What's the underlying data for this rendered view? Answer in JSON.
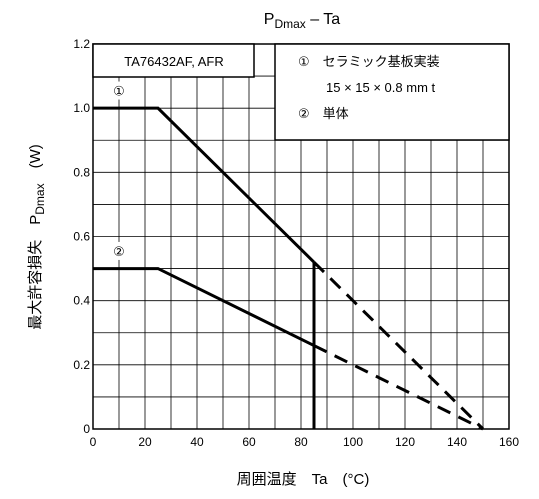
{
  "chart_data": {
    "type": "line",
    "title": "P",
    "title_subscript": "Dmax",
    "title_suffix": " – Ta",
    "xlabel": "周囲温度　Ta　(°C)",
    "ylabel_prefix": "最大許容損失　P",
    "ylabel_subscript": "Dmax",
    "ylabel_suffix": "　(W)",
    "xlim": [
      0,
      160
    ],
    "ylim": [
      0,
      1.2
    ],
    "x_ticks": [
      "0",
      "20",
      "40",
      "60",
      "80",
      "100",
      "120",
      "140",
      "160"
    ],
    "y_ticks": [
      "0",
      "0.2",
      "0.4",
      "0.6",
      "0.8",
      "1.0",
      "1.2"
    ],
    "grid": true,
    "device_label": "TA76432AF, AFR",
    "legend": {
      "line1": "①　セラミック基板実装",
      "line2": "15 × 15 × 0.8 mm t",
      "line3": "②　単体"
    },
    "series": [
      {
        "name": "①",
        "solid": {
          "x": [
            0,
            25,
            85
          ],
          "y": [
            1.0,
            1.0,
            0.52
          ]
        },
        "dashed": {
          "x": [
            85,
            150
          ],
          "y": [
            0.52,
            0.0
          ]
        },
        "marker_x": 10,
        "marker_y": 1.055
      },
      {
        "name": "②",
        "solid": {
          "x": [
            0,
            25,
            85
          ],
          "y": [
            0.5,
            0.5,
            0.26
          ]
        },
        "dashed": {
          "x": [
            85,
            150
          ],
          "y": [
            0.26,
            0.0
          ]
        },
        "marker_x": 10,
        "marker_y": 0.555
      }
    ],
    "vertical_line_x": 85
  }
}
